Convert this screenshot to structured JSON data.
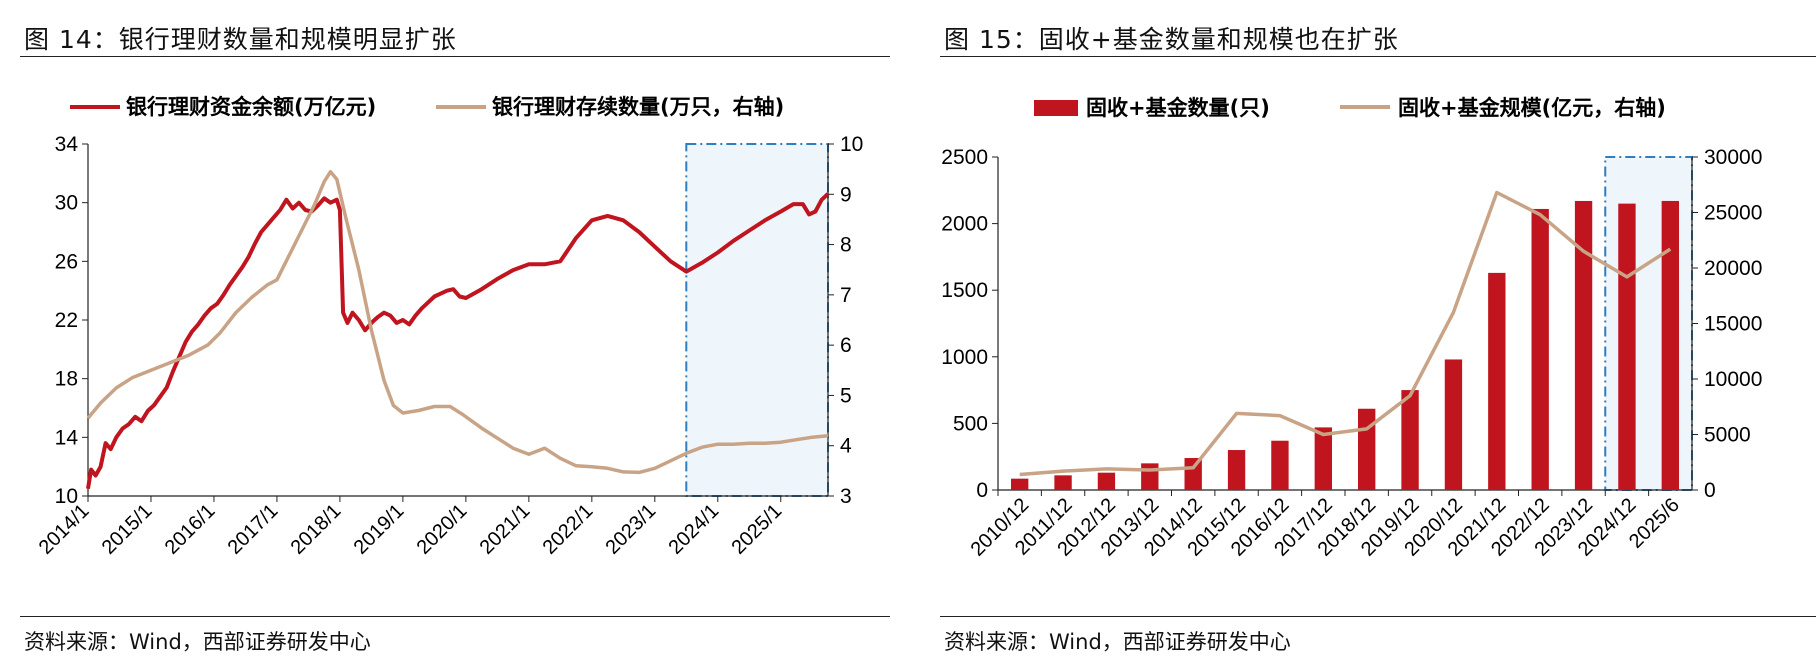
{
  "chart_data": [
    {
      "type": "line",
      "title": "图 14：银行理财数量和规模明显扩张",
      "source": "资料来源：Wind，西部证券研发中心",
      "x_ticks": [
        "2014/1",
        "2015/1",
        "2016/1",
        "2017/1",
        "2018/1",
        "2019/1",
        "2020/1",
        "2021/1",
        "2022/1",
        "2023/1",
        "2024/1",
        "2025/1"
      ],
      "xlim": [
        2014.0,
        2025.75
      ],
      "ylim_left": [
        10,
        34
      ],
      "yticks_left": [
        10,
        14,
        18,
        22,
        26,
        30,
        34
      ],
      "ylim_right": [
        3,
        10
      ],
      "yticks_right": [
        3,
        4,
        5,
        6,
        7,
        8,
        9,
        10
      ],
      "highlight_range": [
        2023.5,
        2025.75
      ],
      "legend_position": "top",
      "series": [
        {
          "name": "银行理财资金余额(万亿元)",
          "axis": "left",
          "color": "#c0141e",
          "points": [
            [
              2014.0,
              10.5
            ],
            [
              2014.05,
              11.8
            ],
            [
              2014.12,
              11.4
            ],
            [
              2014.2,
              12.0
            ],
            [
              2014.28,
              13.6
            ],
            [
              2014.36,
              13.2
            ],
            [
              2014.45,
              14.0
            ],
            [
              2014.55,
              14.6
            ],
            [
              2014.65,
              14.9
            ],
            [
              2014.75,
              15.4
            ],
            [
              2014.85,
              15.1
            ],
            [
              2014.95,
              15.8
            ],
            [
              2015.05,
              16.2
            ],
            [
              2015.15,
              16.8
            ],
            [
              2015.25,
              17.4
            ],
            [
              2015.35,
              18.5
            ],
            [
              2015.45,
              19.5
            ],
            [
              2015.55,
              20.5
            ],
            [
              2015.65,
              21.2
            ],
            [
              2015.75,
              21.7
            ],
            [
              2015.85,
              22.3
            ],
            [
              2015.95,
              22.8
            ],
            [
              2016.05,
              23.1
            ],
            [
              2016.15,
              23.7
            ],
            [
              2016.25,
              24.4
            ],
            [
              2016.35,
              25.0
            ],
            [
              2016.45,
              25.6
            ],
            [
              2016.55,
              26.3
            ],
            [
              2016.65,
              27.2
            ],
            [
              2016.75,
              28.0
            ],
            [
              2016.85,
              28.5
            ],
            [
              2016.95,
              29.0
            ],
            [
              2017.05,
              29.5
            ],
            [
              2017.15,
              30.2
            ],
            [
              2017.25,
              29.6
            ],
            [
              2017.35,
              30.0
            ],
            [
              2017.45,
              29.5
            ],
            [
              2017.55,
              29.4
            ],
            [
              2017.65,
              29.8
            ],
            [
              2017.75,
              30.3
            ],
            [
              2017.85,
              30.0
            ],
            [
              2017.95,
              30.2
            ],
            [
              2018.0,
              29.5
            ],
            [
              2018.05,
              22.5
            ],
            [
              2018.12,
              21.8
            ],
            [
              2018.2,
              22.5
            ],
            [
              2018.3,
              22.0
            ],
            [
              2018.4,
              21.3
            ],
            [
              2018.5,
              21.8
            ],
            [
              2018.6,
              22.2
            ],
            [
              2018.7,
              22.5
            ],
            [
              2018.8,
              22.3
            ],
            [
              2018.9,
              21.8
            ],
            [
              2019.0,
              22.0
            ],
            [
              2019.1,
              21.7
            ],
            [
              2019.2,
              22.3
            ],
            [
              2019.3,
              22.8
            ],
            [
              2019.4,
              23.2
            ],
            [
              2019.5,
              23.6
            ],
            [
              2019.6,
              23.8
            ],
            [
              2019.7,
              24.0
            ],
            [
              2019.8,
              24.1
            ],
            [
              2019.9,
              23.6
            ],
            [
              2020.0,
              23.5
            ],
            [
              2020.25,
              24.1
            ],
            [
              2020.5,
              24.8
            ],
            [
              2020.75,
              25.4
            ],
            [
              2021.0,
              25.8
            ],
            [
              2021.25,
              25.8
            ],
            [
              2021.5,
              26.0
            ],
            [
              2021.75,
              27.6
            ],
            [
              2022.0,
              28.8
            ],
            [
              2022.25,
              29.1
            ],
            [
              2022.5,
              28.8
            ],
            [
              2022.75,
              28.0
            ],
            [
              2023.0,
              27.0
            ],
            [
              2023.25,
              26.0
            ],
            [
              2023.5,
              25.3
            ],
            [
              2023.75,
              25.9
            ],
            [
              2024.0,
              26.6
            ],
            [
              2024.25,
              27.4
            ],
            [
              2024.5,
              28.1
            ],
            [
              2024.75,
              28.8
            ],
            [
              2025.0,
              29.4
            ],
            [
              2025.2,
              29.9
            ],
            [
              2025.35,
              29.9
            ],
            [
              2025.45,
              29.2
            ],
            [
              2025.55,
              29.4
            ],
            [
              2025.65,
              30.2
            ],
            [
              2025.75,
              30.6
            ]
          ]
        },
        {
          "name": "银行理财存续数量(万只，右轴)",
          "axis": "right",
          "color": "#c8a386",
          "points": [
            [
              2014.0,
              4.55
            ],
            [
              2014.2,
              4.85
            ],
            [
              2014.45,
              5.15
            ],
            [
              2014.7,
              5.35
            ],
            [
              2015.0,
              5.5
            ],
            [
              2015.3,
              5.65
            ],
            [
              2015.6,
              5.8
            ],
            [
              2015.9,
              6.0
            ],
            [
              2016.1,
              6.25
            ],
            [
              2016.35,
              6.65
            ],
            [
              2016.6,
              6.95
            ],
            [
              2016.85,
              7.2
            ],
            [
              2017.0,
              7.3
            ],
            [
              2017.2,
              7.8
            ],
            [
              2017.4,
              8.3
            ],
            [
              2017.6,
              8.8
            ],
            [
              2017.75,
              9.25
            ],
            [
              2017.85,
              9.45
            ],
            [
              2017.95,
              9.3
            ],
            [
              2018.1,
              8.5
            ],
            [
              2018.3,
              7.5
            ],
            [
              2018.5,
              6.3
            ],
            [
              2018.7,
              5.3
            ],
            [
              2018.85,
              4.8
            ],
            [
              2019.0,
              4.65
            ],
            [
              2019.25,
              4.7
            ],
            [
              2019.5,
              4.78
            ],
            [
              2019.75,
              4.78
            ],
            [
              2019.95,
              4.62
            ],
            [
              2020.25,
              4.35
            ],
            [
              2020.5,
              4.15
            ],
            [
              2020.75,
              3.95
            ],
            [
              2021.0,
              3.83
            ],
            [
              2021.25,
              3.95
            ],
            [
              2021.5,
              3.75
            ],
            [
              2021.75,
              3.6
            ],
            [
              2022.0,
              3.58
            ],
            [
              2022.25,
              3.55
            ],
            [
              2022.5,
              3.48
            ],
            [
              2022.75,
              3.47
            ],
            [
              2023.0,
              3.55
            ],
            [
              2023.25,
              3.7
            ],
            [
              2023.5,
              3.85
            ],
            [
              2023.75,
              3.97
            ],
            [
              2024.0,
              4.03
            ],
            [
              2024.25,
              4.03
            ],
            [
              2024.5,
              4.05
            ],
            [
              2024.75,
              4.05
            ],
            [
              2025.0,
              4.07
            ],
            [
              2025.25,
              4.12
            ],
            [
              2025.5,
              4.17
            ],
            [
              2025.75,
              4.2
            ]
          ]
        }
      ]
    },
    {
      "type": "bar",
      "title": "图 15：固收+基金数量和规模也在扩张",
      "source": "资料来源：Wind，西部证券研发中心",
      "categories": [
        "2010/12",
        "2011/12",
        "2012/12",
        "2013/12",
        "2014/12",
        "2015/12",
        "2016/12",
        "2017/12",
        "2018/12",
        "2019/12",
        "2020/12",
        "2021/12",
        "2022/12",
        "2023/12",
        "2024/12",
        "2025/6"
      ],
      "ylim_left": [
        0,
        2500
      ],
      "yticks_left": [
        0,
        500,
        1000,
        1500,
        2000,
        2500
      ],
      "ylim_right": [
        0,
        30000
      ],
      "yticks_right": [
        0,
        5000,
        10000,
        15000,
        20000,
        25000,
        30000
      ],
      "highlight_categories": [
        "2024/12",
        "2025/6"
      ],
      "legend_position": "top",
      "series": [
        {
          "name": "固收+基金数量(只)",
          "axis": "left",
          "kind": "bar",
          "color": "#c0141e",
          "values": [
            85,
            110,
            130,
            200,
            240,
            300,
            370,
            470,
            610,
            750,
            980,
            1630,
            2110,
            2170,
            2150,
            2170
          ]
        },
        {
          "name": "固收+基金规模(亿元，右轴)",
          "axis": "right",
          "kind": "line",
          "color": "#c8a386",
          "values": [
            1400,
            1700,
            1900,
            1800,
            2000,
            6900,
            6700,
            5000,
            5500,
            8500,
            16000,
            26800,
            24800,
            21500,
            19200,
            21700
          ]
        }
      ]
    }
  ]
}
